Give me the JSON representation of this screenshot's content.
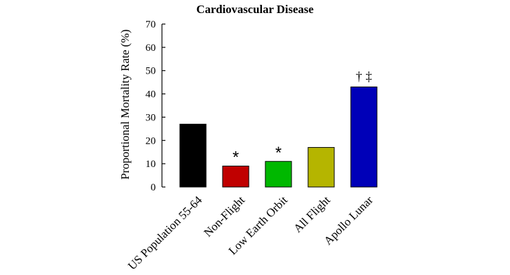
{
  "chart_data": {
    "type": "bar",
    "title": "Cardiovascular Disease",
    "ylabel": "Proportional Mortality Rate (%)",
    "xlabel": "",
    "ylim": [
      0,
      70
    ],
    "yticks": [
      0,
      10,
      20,
      30,
      40,
      50,
      60,
      70
    ],
    "grid": false,
    "legend": "none",
    "categories": [
      "US Population 55-64",
      "Non-Flight",
      "Low Earth Orbit",
      "All Flight",
      "Apollo Lunar"
    ],
    "values": [
      27,
      9,
      11,
      17,
      43
    ],
    "colors": [
      "#000000",
      "#c00000",
      "#00b800",
      "#b5b500",
      "#0000b8"
    ],
    "annotations": [
      "",
      "*",
      "*",
      "",
      "† ‡"
    ]
  }
}
